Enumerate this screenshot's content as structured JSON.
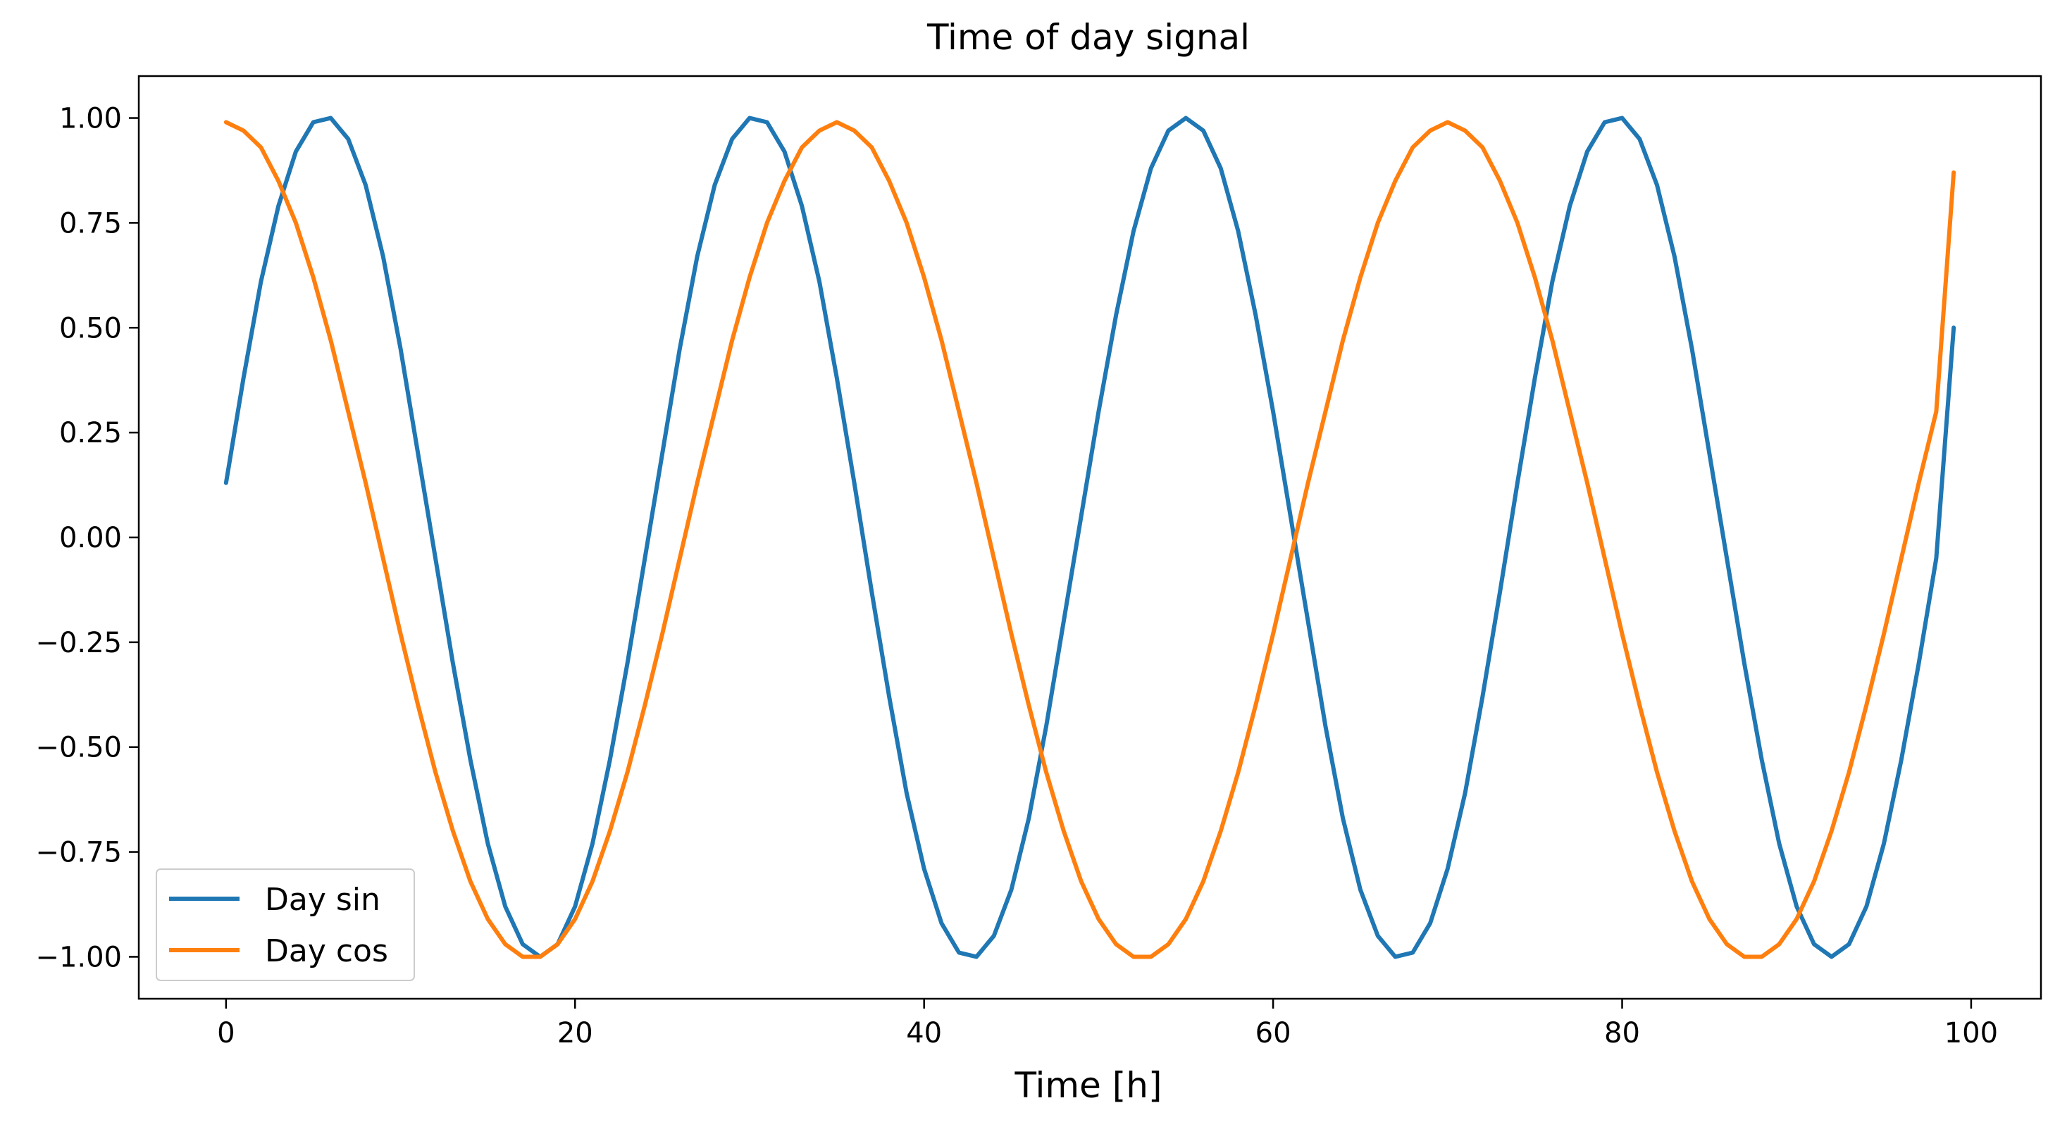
{
  "chart_data": {
    "type": "line",
    "title": "Time of day signal",
    "xlabel": "Time [h]",
    "ylabel": "",
    "xlim": [
      -5,
      104
    ],
    "ylim": [
      -1.1,
      1.1
    ],
    "xticks": [
      0,
      20,
      40,
      60,
      80,
      100
    ],
    "xtick_labels": [
      "0",
      "20",
      "40",
      "60",
      "80",
      "100"
    ],
    "yticks": [
      1.0,
      0.75,
      0.5,
      0.25,
      0.0,
      -0.25,
      -0.5,
      -0.75,
      -1.0
    ],
    "ytick_labels": [
      "1.00",
      "0.75",
      "0.50",
      "0.25",
      "0.00",
      "−0.25",
      "−0.50",
      "−0.75",
      "−1.00"
    ],
    "grid": false,
    "legend_position": "lower-left",
    "x": [
      0,
      1,
      2,
      3,
      4,
      5,
      6,
      7,
      8,
      9,
      10,
      11,
      12,
      13,
      14,
      15,
      16,
      17,
      18,
      19,
      20,
      21,
      22,
      23,
      24,
      25,
      26,
      27,
      28,
      29,
      30,
      31,
      32,
      33,
      34,
      35,
      36,
      37,
      38,
      39,
      40,
      41,
      42,
      43,
      44,
      45,
      46,
      47,
      48,
      49,
      50,
      51,
      52,
      53,
      54,
      55,
      56,
      57,
      58,
      59,
      60,
      61,
      62,
      63,
      64,
      65,
      66,
      67,
      68,
      69,
      70,
      71,
      72,
      73,
      74,
      75,
      76,
      77,
      78,
      79,
      80,
      81,
      82,
      83,
      84,
      85,
      86,
      87,
      88,
      89,
      90,
      91,
      92,
      93,
      94,
      95,
      96,
      97,
      98,
      99
    ],
    "series": [
      {
        "name": "Day sin",
        "color": "#1f77b4",
        "values": [
          0.13,
          0.38,
          0.61,
          0.79,
          0.92,
          0.99,
          1.0,
          0.95,
          0.84,
          0.67,
          0.45,
          0.2,
          -0.05,
          -0.3,
          -0.53,
          -0.73,
          -0.88,
          -0.97,
          -1.0,
          -0.97,
          -0.88,
          -0.73,
          -0.53,
          -0.3,
          -0.05,
          0.2,
          0.45,
          0.67,
          0.84,
          0.95,
          1.0,
          0.99,
          0.92,
          0.79,
          0.61,
          0.38,
          0.13,
          -0.13,
          -0.38,
          -0.61,
          -0.79,
          -0.92,
          -0.99,
          -1.0,
          -0.95,
          -0.84,
          -0.67,
          -0.45,
          -0.2,
          0.05,
          0.3,
          0.53,
          0.73,
          0.88,
          0.97,
          1.0,
          0.97,
          0.88,
          0.73,
          0.53,
          0.3,
          0.05,
          -0.2,
          -0.45,
          -0.67,
          -0.84,
          -0.95,
          -1.0,
          -0.99,
          -0.92,
          -0.79,
          -0.61,
          -0.38,
          -0.13,
          0.13,
          0.38,
          0.61,
          0.79,
          0.92,
          0.99,
          1.0,
          0.95,
          0.84,
          0.67,
          0.45,
          0.2,
          -0.05,
          -0.3,
          -0.53,
          -0.73,
          -0.88,
          -0.97,
          -1.0,
          -0.97,
          -0.88,
          -0.73,
          -0.53,
          -0.3,
          -0.05,
          0.5
        ]
      },
      {
        "name": "Day cos",
        "color": "#ff7f0e",
        "values": [
          0.99,
          0.97,
          0.93,
          0.85,
          0.75,
          0.62,
          0.47,
          0.3,
          0.13,
          -0.05,
          -0.23,
          -0.4,
          -0.56,
          -0.7,
          -0.82,
          -0.91,
          -0.97,
          -1.0,
          -1.0,
          -0.97,
          -0.91,
          -0.82,
          -0.7,
          -0.56,
          -0.4,
          -0.23,
          -0.05,
          0.13,
          0.3,
          0.47,
          0.62,
          0.75,
          0.85,
          0.93,
          0.97,
          0.99,
          0.97,
          0.93,
          0.85,
          0.75,
          0.62,
          0.47,
          0.3,
          0.13,
          -0.05,
          -0.23,
          -0.4,
          -0.56,
          -0.7,
          -0.82,
          -0.91,
          -0.97,
          -1.0,
          -1.0,
          -0.97,
          -0.91,
          -0.82,
          -0.7,
          -0.56,
          -0.4,
          -0.23,
          -0.05,
          0.13,
          0.3,
          0.47,
          0.62,
          0.75,
          0.85,
          0.93,
          0.97,
          0.99,
          0.97,
          0.93,
          0.85,
          0.75,
          0.62,
          0.47,
          0.3,
          0.13,
          -0.05,
          -0.23,
          -0.4,
          -0.56,
          -0.7,
          -0.82,
          -0.91,
          -0.97,
          -1.0,
          -1.0,
          -0.97,
          -0.91,
          -0.82,
          -0.7,
          -0.56,
          -0.4,
          -0.23,
          -0.05,
          0.13,
          0.3,
          0.87
        ]
      }
    ]
  }
}
